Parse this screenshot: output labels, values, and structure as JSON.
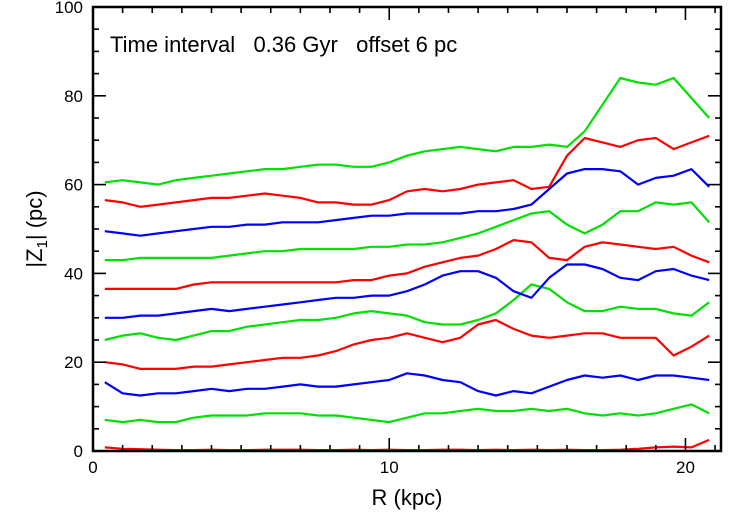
{
  "chart_data": {
    "type": "line",
    "title": "",
    "annotation": "Time interval   0.36 Gyr   offset 6 pc",
    "xlabel": "R (kpc)",
    "ylabel_prefix": "|Z",
    "ylabel_sub": "1",
    "ylabel_suffix": "|  (pc)",
    "xlim": [
      0,
      21.2
    ],
    "ylim": [
      0,
      100
    ],
    "x_major_ticks": [
      0,
      10,
      20
    ],
    "x_minor_step": 1,
    "y_major_ticks": [
      0,
      20,
      40,
      60,
      80,
      100
    ],
    "y_minor_step": 5,
    "x_tick_labels": [
      "0",
      "10",
      "20"
    ],
    "y_tick_labels": [
      "0",
      "20",
      "40",
      "60",
      "80",
      "100"
    ],
    "grid": false,
    "legend": "none",
    "x": [
      0.4,
      1.0,
      1.6,
      2.2,
      2.8,
      3.4,
      4.0,
      4.6,
      5.2,
      5.8,
      6.4,
      7.0,
      7.6,
      8.2,
      8.8,
      9.4,
      10.0,
      10.6,
      11.2,
      11.8,
      12.4,
      13.0,
      13.6,
      14.2,
      14.8,
      15.4,
      16.0,
      16.6,
      17.2,
      17.8,
      18.4,
      19.0,
      19.6,
      20.2,
      20.8
    ],
    "series": [
      {
        "color": "#ff0000",
        "values": [
          0.8,
          0.5,
          0.4,
          0.3,
          0.2,
          0.2,
          0.3,
          0.2,
          0.2,
          0.3,
          0.3,
          0.3,
          0.2,
          0.2,
          0.3,
          0.2,
          0.3,
          0.2,
          0.2,
          0.3,
          0.3,
          0.2,
          0.3,
          0.2,
          0.3,
          0.2,
          0.3,
          0.2,
          0.2,
          0.3,
          0.5,
          0.8,
          1.0,
          0.8,
          2.5
        ]
      },
      {
        "color": "#00e000",
        "values": [
          7.0,
          6.5,
          7.0,
          6.5,
          6.5,
          7.5,
          8.0,
          8.0,
          8.0,
          8.5,
          8.5,
          8.5,
          8.0,
          8.0,
          7.5,
          7.0,
          6.5,
          7.5,
          8.5,
          8.5,
          9.0,
          9.5,
          9.0,
          9.0,
          9.5,
          9.0,
          9.5,
          8.5,
          8.0,
          8.5,
          8.0,
          8.5,
          9.5,
          10.5,
          8.5
        ]
      },
      {
        "color": "#0000ff",
        "values": [
          15.5,
          13.0,
          12.5,
          13.0,
          13.0,
          13.5,
          14.0,
          13.5,
          14.0,
          14.0,
          14.5,
          15.0,
          14.5,
          14.5,
          15.0,
          15.5,
          16.0,
          17.5,
          17.0,
          16.0,
          15.5,
          13.5,
          12.5,
          13.5,
          13.0,
          14.5,
          16.0,
          17.0,
          16.5,
          17.0,
          16.0,
          17.0,
          17.0,
          16.5,
          16.0
        ]
      },
      {
        "color": "#ff0000",
        "values": [
          20.0,
          19.5,
          18.5,
          18.5,
          18.5,
          19.0,
          19.0,
          19.5,
          20.0,
          20.5,
          21.0,
          21.0,
          21.5,
          22.5,
          24.0,
          25.0,
          25.5,
          26.5,
          25.5,
          24.5,
          25.5,
          28.5,
          29.5,
          27.5,
          26.0,
          25.5,
          26.0,
          26.5,
          26.5,
          25.5,
          25.5,
          25.5,
          21.5,
          23.5,
          26.0
        ]
      },
      {
        "color": "#00e000",
        "values": [
          25.0,
          26.0,
          26.5,
          25.5,
          25.0,
          26.0,
          27.0,
          27.0,
          28.0,
          28.5,
          29.0,
          29.5,
          29.5,
          30.0,
          31.0,
          31.5,
          31.0,
          30.5,
          29.0,
          28.5,
          28.5,
          29.5,
          31.0,
          34.0,
          37.5,
          36.5,
          33.5,
          31.5,
          31.5,
          32.5,
          32.0,
          32.0,
          31.0,
          30.5,
          33.5
        ]
      },
      {
        "color": "#0000ff",
        "values": [
          30.0,
          30.0,
          30.5,
          30.5,
          31.0,
          31.5,
          32.0,
          31.5,
          32.0,
          32.5,
          33.0,
          33.5,
          34.0,
          34.5,
          34.5,
          35.0,
          35.0,
          36.0,
          37.5,
          39.5,
          40.5,
          40.5,
          39.0,
          36.0,
          34.5,
          39.0,
          42.0,
          42.0,
          41.0,
          39.0,
          38.5,
          40.5,
          41.0,
          39.5,
          38.5
        ]
      },
      {
        "color": "#ff0000",
        "values": [
          36.5,
          36.5,
          36.5,
          36.5,
          36.5,
          37.5,
          38.0,
          38.0,
          38.0,
          38.0,
          38.0,
          38.0,
          38.0,
          38.0,
          38.5,
          38.5,
          39.5,
          40.0,
          41.5,
          42.5,
          43.5,
          44.0,
          45.5,
          47.5,
          47.0,
          43.5,
          43.0,
          46.0,
          47.0,
          46.5,
          46.0,
          45.5,
          46.0,
          44.0,
          42.5
        ]
      },
      {
        "color": "#00e000",
        "values": [
          43.0,
          43.0,
          43.5,
          43.5,
          43.5,
          43.5,
          43.5,
          44.0,
          44.5,
          45.0,
          45.0,
          45.5,
          45.5,
          45.5,
          45.5,
          46.0,
          46.0,
          46.5,
          46.5,
          47.0,
          48.0,
          49.0,
          50.5,
          52.0,
          53.5,
          54.0,
          51.0,
          49.0,
          51.0,
          54.0,
          54.0,
          56.0,
          55.5,
          56.0,
          51.5
        ]
      },
      {
        "color": "#0000ff",
        "values": [
          49.5,
          49.0,
          48.5,
          49.0,
          49.5,
          50.0,
          50.5,
          50.5,
          51.0,
          51.0,
          51.5,
          51.5,
          51.5,
          52.0,
          52.5,
          53.0,
          53.0,
          53.5,
          53.5,
          53.5,
          53.5,
          54.0,
          54.0,
          54.5,
          55.5,
          59.0,
          62.5,
          63.5,
          63.5,
          63.0,
          60.0,
          61.5,
          62.0,
          63.5,
          59.5
        ]
      },
      {
        "color": "#ff0000",
        "values": [
          56.5,
          56.0,
          55.0,
          55.5,
          56.0,
          56.5,
          57.0,
          57.0,
          57.5,
          58.0,
          57.5,
          57.0,
          56.0,
          56.0,
          55.5,
          55.5,
          56.5,
          58.5,
          59.0,
          58.5,
          59.0,
          60.0,
          60.5,
          61.0,
          59.0,
          59.5,
          66.5,
          70.5,
          69.5,
          68.5,
          70.0,
          70.5,
          68.0,
          69.5,
          71.0
        ]
      },
      {
        "color": "#00e000",
        "values": [
          60.5,
          61.0,
          60.5,
          60.0,
          61.0,
          61.5,
          62.0,
          62.5,
          63.0,
          63.5,
          63.5,
          64.0,
          64.5,
          64.5,
          64.0,
          64.0,
          65.0,
          66.5,
          67.5,
          68.0,
          68.5,
          68.0,
          67.5,
          68.5,
          68.5,
          69.0,
          68.5,
          72.0,
          78.0,
          84.0,
          83.0,
          82.5,
          84.0,
          79.5,
          75.0
        ]
      }
    ]
  }
}
